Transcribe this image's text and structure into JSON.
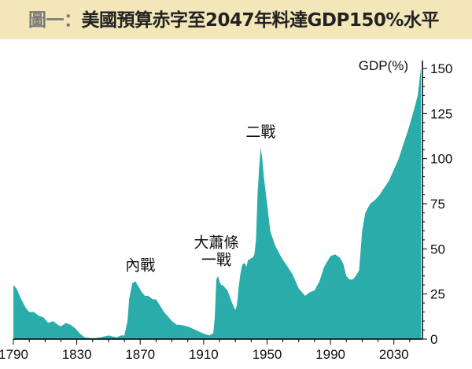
{
  "header": {
    "title_prefix": "圖一：",
    "title": "美國預算赤字至2047年料達GDP150%水平"
  },
  "chart_data": {
    "type": "area",
    "title": "美國預算赤字至2047年料達GDP150%水平",
    "ylabel": "GDP(%)",
    "xlim": [
      1790,
      2048
    ],
    "ylim": [
      0,
      150
    ],
    "x_ticks": [
      "1790",
      "1830",
      "1870",
      "1910",
      "1950",
      "1990",
      "2030"
    ],
    "y_ticks": [
      "0",
      "25",
      "50",
      "75",
      "100",
      "125",
      "150"
    ],
    "grid": false,
    "y_axis_side": "right",
    "fill_color": "#2aacaa",
    "annotations": [
      {
        "lines": [
          "內戰"
        ],
        "year": 1870
      },
      {
        "lines": [
          "大蕭條",
          "一戰"
        ],
        "year": 1918
      },
      {
        "lines": [
          "二戰"
        ],
        "year": 1946
      }
    ],
    "series": [
      {
        "x": [
          1790,
          1792,
          1795,
          1798,
          1800,
          1803,
          1806,
          1809,
          1812,
          1815,
          1818,
          1820,
          1823,
          1826,
          1829,
          1832,
          1835,
          1840,
          1845,
          1850,
          1855,
          1858,
          1860,
          1862,
          1863,
          1865,
          1867,
          1869,
          1871,
          1873,
          1875,
          1878,
          1880,
          1885,
          1890,
          1893,
          1895,
          1900,
          1905,
          1910,
          1914,
          1915,
          1916,
          1917,
          1918,
          1919,
          1920,
          1921,
          1922,
          1925,
          1928,
          1929,
          1930,
          1931,
          1932,
          1933,
          1934,
          1935,
          1936,
          1937,
          1938,
          1939,
          1940,
          1941,
          1942,
          1943,
          1944,
          1945,
          1946,
          1947,
          1948,
          1950,
          1952,
          1955,
          1958,
          1960,
          1963,
          1966,
          1970,
          1974,
          1977,
          1980,
          1983,
          1986,
          1990,
          1993,
          1996,
          1998,
          2000,
          2002,
          2004,
          2006,
          2008,
          2010,
          2012,
          2015,
          2018,
          2021,
          2024,
          2027,
          2030,
          2033,
          2036,
          2039,
          2042,
          2045,
          2047
        ],
        "y": [
          30,
          28,
          22,
          17,
          15,
          15,
          13,
          12,
          9,
          10,
          8,
          7,
          9,
          8,
          6,
          3,
          1,
          0.5,
          1,
          2,
          1,
          2,
          2,
          10,
          22,
          31,
          32,
          29,
          26,
          24,
          24,
          22,
          22,
          15,
          10,
          8,
          8,
          7,
          5,
          3,
          2,
          3,
          3,
          12,
          33,
          35,
          32,
          30,
          30,
          27,
          20,
          18,
          16,
          19,
          28,
          35,
          40,
          42,
          42,
          40,
          44,
          44,
          45,
          45,
          47,
          55,
          80,
          95,
          106,
          100,
          90,
          75,
          60,
          52,
          47,
          44,
          40,
          36,
          28,
          24,
          26,
          27,
          32,
          40,
          46,
          47,
          45,
          42,
          35,
          33,
          33,
          35,
          38,
          60,
          70,
          75,
          77,
          80,
          84,
          88,
          94,
          100,
          108,
          116,
          125,
          135,
          150
        ]
      }
    ]
  }
}
